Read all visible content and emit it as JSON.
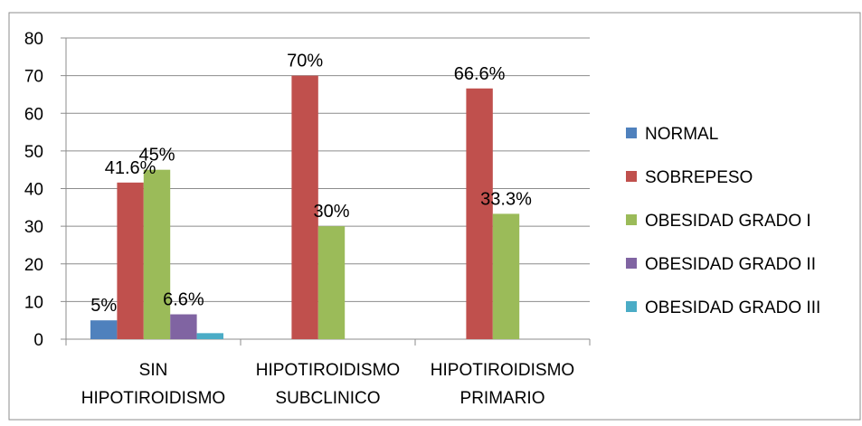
{
  "chart_data": {
    "type": "bar",
    "title": "",
    "xlabel": "",
    "ylabel": "",
    "ylim": [
      0,
      80
    ],
    "yticks": [
      0,
      10,
      20,
      30,
      40,
      50,
      60,
      70,
      80
    ],
    "grid": true,
    "legend_position": "right",
    "categories": [
      [
        "SIN",
        "HIPOTIROIDISMO"
      ],
      [
        "HIPOTIROIDISMO",
        "SUBCLINICO"
      ],
      [
        "HIPOTIROIDISMO",
        "PRIMARIO"
      ]
    ],
    "series": [
      {
        "name": "NORMAL",
        "color": "#4F81BD",
        "values": [
          5,
          0,
          0
        ],
        "labels": [
          "5%",
          "",
          ""
        ]
      },
      {
        "name": "SOBREPESO",
        "color": "#C0504D",
        "values": [
          41.6,
          70,
          66.6
        ],
        "labels": [
          "41.6%",
          "70%",
          "66.6%"
        ]
      },
      {
        "name": "OBESIDAD GRADO I",
        "color": "#9BBB59",
        "values": [
          45,
          30,
          33.3
        ],
        "labels": [
          "45%",
          "30%",
          "33.3%"
        ]
      },
      {
        "name": "OBESIDAD GRADO II",
        "color": "#8064A2",
        "values": [
          6.6,
          0,
          0
        ],
        "labels": [
          "6.6%",
          "",
          ""
        ]
      },
      {
        "name": "OBESIDAD GRADO III",
        "color": "#4BACC6",
        "values": [
          1.6,
          0,
          0
        ],
        "labels": [
          "",
          "",
          ""
        ]
      }
    ]
  }
}
